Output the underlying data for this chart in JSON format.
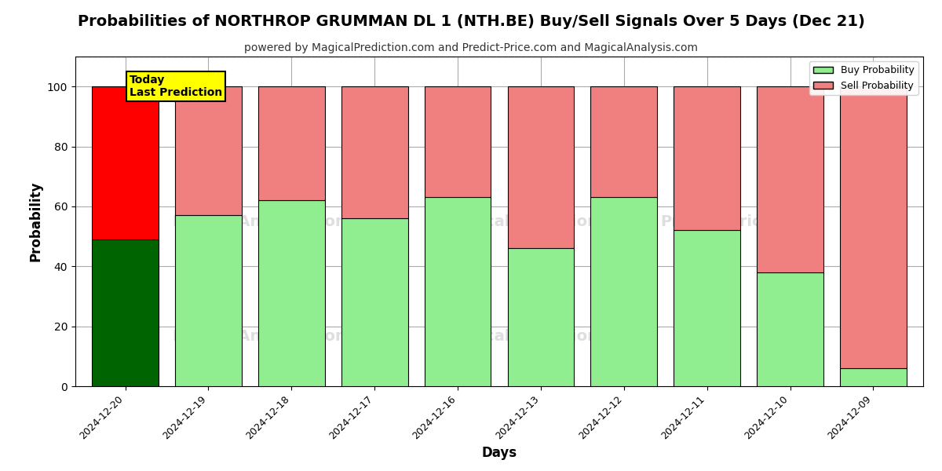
{
  "title": "Probabilities of NORTHROP GRUMMAN DL 1 (NTH.BE) Buy/Sell Signals Over 5 Days (Dec 21)",
  "subtitle": "powered by MagicalPrediction.com and Predict-Price.com and MagicalAnalysis.com",
  "xlabel": "Days",
  "ylabel": "Probability",
  "dates": [
    "2024-12-20",
    "2024-12-19",
    "2024-12-18",
    "2024-12-17",
    "2024-12-16",
    "2024-12-13",
    "2024-12-12",
    "2024-12-11",
    "2024-12-10",
    "2024-12-09"
  ],
  "buy_values": [
    49,
    57,
    62,
    56,
    63,
    46,
    63,
    52,
    38,
    6
  ],
  "sell_values": [
    51,
    43,
    38,
    44,
    37,
    54,
    37,
    48,
    62,
    94
  ],
  "buy_color_today": "#006400",
  "sell_color_today": "#ff0000",
  "buy_color_rest": "#90ee90",
  "sell_color_rest": "#f08080",
  "bar_edge_color": "#000000",
  "bar_width": 0.8,
  "ylim": [
    0,
    110
  ],
  "yticks": [
    0,
    20,
    40,
    60,
    80,
    100
  ],
  "dashed_line_y": 110,
  "watermark_color": "#c8c8c8",
  "watermark_alpha": 0.6,
  "legend_buy_label": "Buy Probability",
  "legend_sell_label": "Sell Probability",
  "today_box_text": "Today\nLast Prediction",
  "today_box_facecolor": "#ffff00",
  "today_box_edgecolor": "#000000",
  "grid_color": "#aaaaaa",
  "fig_width": 12,
  "fig_height": 6,
  "title_fontsize": 14,
  "subtitle_fontsize": 10,
  "axis_label_fontsize": 12
}
